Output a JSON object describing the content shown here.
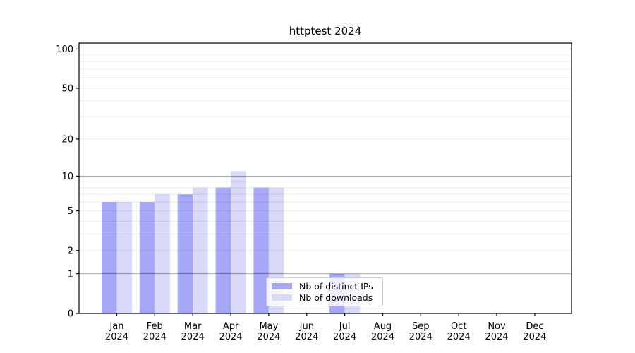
{
  "chart_data": {
    "type": "bar",
    "title": "httptest 2024",
    "categories": [
      "Jan",
      "Feb",
      "Mar",
      "Apr",
      "May",
      "Jun",
      "Jul",
      "Aug",
      "Sep",
      "Oct",
      "Nov",
      "Dec"
    ],
    "category_year": "2024",
    "series": [
      {
        "name": "Nb of distinct IPs",
        "color": "#a7a7f7",
        "values": [
          6,
          6,
          7,
          8,
          8,
          0,
          1,
          0,
          0,
          0,
          0,
          0
        ]
      },
      {
        "name": "Nb of downloads",
        "color": "#d9d9f9",
        "values": [
          6,
          7,
          8,
          11,
          8,
          0,
          1,
          0,
          0,
          0,
          0,
          0
        ]
      }
    ],
    "yscale": "log1p",
    "ylim": [
      0,
      111
    ],
    "y_ticks": [
      0,
      1,
      2,
      5,
      10,
      20,
      50,
      100
    ],
    "grid_major": [
      1,
      10,
      100
    ],
    "grid_minor": [
      2,
      3,
      4,
      5,
      6,
      7,
      8,
      9,
      20,
      30,
      40,
      50,
      60,
      70,
      80,
      90
    ],
    "legend_position": "lower center"
  },
  "colors": {
    "grid_major": "#b3b3b3",
    "grid_minor": "#ebebeb",
    "axis": "#000000",
    "text": "#000000"
  }
}
